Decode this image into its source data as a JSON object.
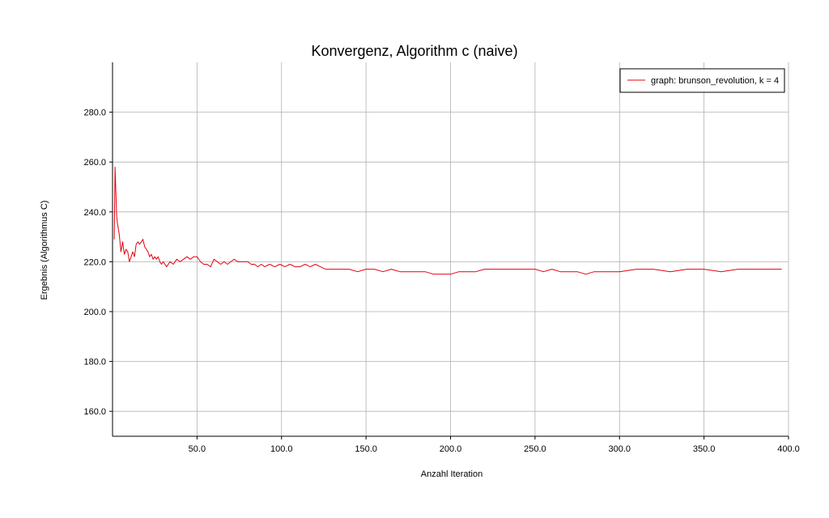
{
  "chart_data": {
    "type": "line",
    "title": "Konvergenz, Algorithm c (naive)",
    "xlabel": "Anzahl Iteration",
    "ylabel": "Ergebnis (Algorithmus C)",
    "xlim": [
      0,
      400
    ],
    "ylim": [
      150,
      300
    ],
    "xticks": [
      50,
      100,
      150,
      200,
      250,
      300,
      350,
      400
    ],
    "yticks": [
      160,
      180,
      200,
      220,
      240,
      260,
      280
    ],
    "xtick_labels": [
      "50.0",
      "100.0",
      "150.0",
      "200.0",
      "250.0",
      "300.0",
      "350.0",
      "400.0"
    ],
    "ytick_labels": [
      "160.0",
      "180.0",
      "200.0",
      "220.0",
      "240.0",
      "260.0",
      "280.0"
    ],
    "grid": true,
    "legend_position": "top-right",
    "series": [
      {
        "name": "graph: brunson_revolution, k = 4",
        "color": "#e3000f",
        "x": [
          1,
          1.5,
          2,
          2.5,
          3,
          4,
          5,
          6,
          7,
          8,
          9,
          10,
          11,
          12,
          13,
          14,
          15,
          16,
          17,
          18,
          19,
          20,
          21,
          22,
          23,
          24,
          25,
          26,
          27,
          28,
          29,
          30,
          32,
          34,
          36,
          38,
          40,
          42,
          44,
          46,
          48,
          50,
          52,
          54,
          56,
          58,
          60,
          62,
          64,
          66,
          68,
          70,
          72,
          74,
          76,
          78,
          80,
          82,
          84,
          86,
          88,
          90,
          93,
          96,
          99,
          102,
          105,
          108,
          111,
          114,
          117,
          120,
          123,
          126,
          130,
          135,
          140,
          145,
          150,
          155,
          160,
          165,
          170,
          175,
          180,
          185,
          190,
          195,
          200,
          205,
          210,
          215,
          220,
          225,
          230,
          235,
          240,
          245,
          250,
          255,
          260,
          265,
          270,
          275,
          280,
          285,
          290,
          295,
          300,
          310,
          320,
          330,
          340,
          350,
          360,
          370,
          380,
          390,
          396
        ],
        "y": [
          229,
          258,
          247,
          238,
          235,
          231,
          224,
          228,
          223,
          225,
          224,
          220,
          222,
          224,
          222,
          227,
          228,
          227,
          228,
          229,
          226,
          225,
          224,
          222,
          223,
          221,
          222,
          221,
          222,
          220,
          219,
          220,
          218,
          220,
          219,
          221,
          220,
          221,
          222,
          221,
          222,
          222,
          220,
          219,
          219,
          218,
          221,
          220,
          219,
          220,
          219,
          220,
          221,
          220,
          220,
          220,
          220,
          219,
          219,
          218,
          219,
          218,
          219,
          218,
          219,
          218,
          219,
          218,
          218,
          219,
          218,
          219,
          218,
          217,
          217,
          217,
          217,
          216,
          217,
          217,
          216,
          217,
          216,
          216,
          216,
          216,
          215,
          215,
          215,
          216,
          216,
          216,
          217,
          217,
          217,
          217,
          217,
          217,
          217,
          216,
          217,
          216,
          216,
          216,
          215,
          216,
          216,
          216,
          216,
          217,
          217,
          216,
          217,
          217,
          216,
          217,
          217,
          217,
          217
        ]
      }
    ]
  }
}
